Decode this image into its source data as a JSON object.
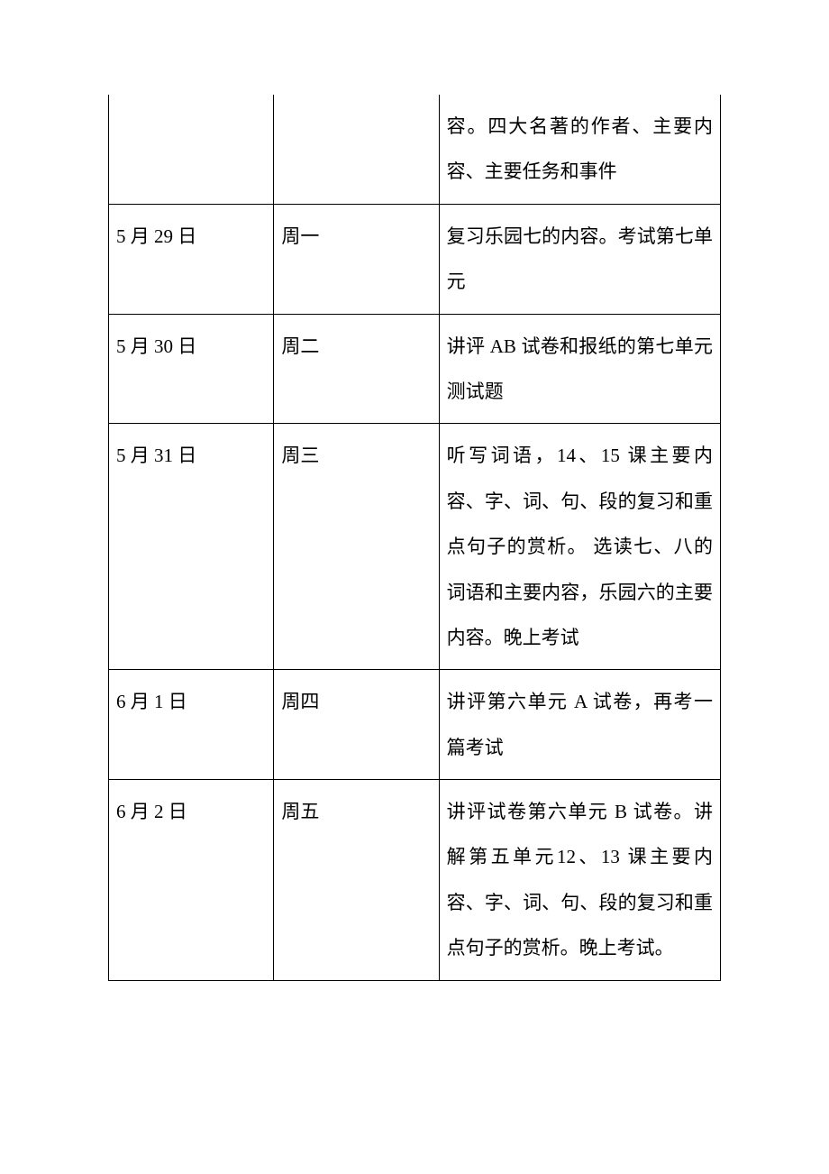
{
  "table": {
    "columns": [
      "date",
      "day",
      "content"
    ],
    "rows": [
      {
        "date": "",
        "day": "",
        "content": "容。四大名著的作者、主要内容、主要任务和事件"
      },
      {
        "date": "5 月 29 日",
        "day": "周一",
        "content": "复习乐园七的内容。考试第七单元"
      },
      {
        "date": "5 月 30 日",
        "day": "周二",
        "content": "讲评 AB 试卷和报纸的第七单元测试题"
      },
      {
        "date": "5 月 31 日",
        "day": "周三",
        "content": "听写词语，14、15 课主要内容、字、词、句、段的复习和重点句子的赏析。\n选读七、八的词语和主要内容，乐园六的主要内容。晚上考试"
      },
      {
        "date": "6 月 1 日",
        "day": "周四",
        "content": "讲评第六单元 A 试卷，再考一篇考试"
      },
      {
        "date": "6 月 2 日",
        "day": "周五",
        "content": "讲评试卷第六单元 B 试卷。讲解第五单元12、13 课主要内容、字、词、句、段的复习和重点句子的赏析。晚上考试。"
      }
    ],
    "border_color": "#000000",
    "background_color": "#ffffff",
    "font_size": 21,
    "line_height": 2.4,
    "text_color": "#000000"
  }
}
